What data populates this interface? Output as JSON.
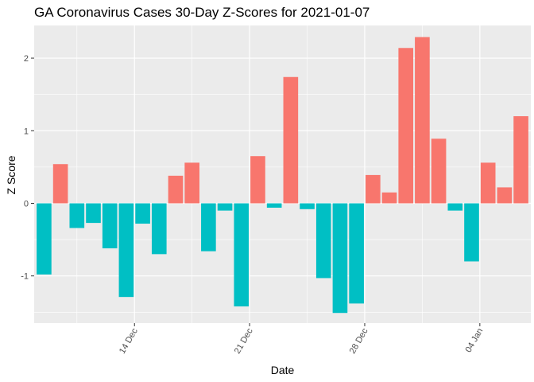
{
  "chart_data": {
    "type": "bar",
    "title": "GA Coronavirus Cases 30-Day Z-Scores for 2021-01-07",
    "xlabel": "Date",
    "ylabel": "Z Score",
    "ylim": [
      -1.65,
      2.45
    ],
    "y_ticks": [
      -1,
      0,
      1,
      2
    ],
    "y_tick_labels": [
      "-1",
      "0",
      "1",
      "2"
    ],
    "x_ticks": [
      {
        "label": "14 Dec",
        "index": 5.5
      },
      {
        "label": "21 Dec",
        "index": 12.5
      },
      {
        "label": "28 Dec",
        "index": 19.5
      },
      {
        "label": "04 Jan",
        "index": 26.5
      }
    ],
    "fill_positive": "#F8766D",
    "fill_negative": "#00BFC4",
    "panel_background": "#EBEBEB",
    "grid_color": "#FFFFFF",
    "grid": true,
    "legend": "none",
    "categories": [
      "2020-12-09",
      "2020-12-10",
      "2020-12-11",
      "2020-12-12",
      "2020-12-13",
      "2020-12-14",
      "2020-12-15",
      "2020-12-16",
      "2020-12-17",
      "2020-12-18",
      "2020-12-19",
      "2020-12-20",
      "2020-12-21",
      "2020-12-22",
      "2020-12-23",
      "2020-12-24",
      "2020-12-25",
      "2020-12-26",
      "2020-12-27",
      "2020-12-28",
      "2020-12-29",
      "2020-12-30",
      "2020-12-31",
      "2021-01-01",
      "2021-01-02",
      "2021-01-03",
      "2021-01-04",
      "2021-01-05",
      "2021-01-06",
      "2021-01-07"
    ],
    "values": [
      -0.98,
      0.54,
      -0.34,
      -0.27,
      -0.62,
      -1.29,
      -0.28,
      -0.7,
      0.38,
      0.56,
      -0.66,
      -0.1,
      -1.42,
      0.65,
      -0.06,
      1.74,
      -0.08,
      -1.03,
      -1.51,
      -1.38,
      0.39,
      0.15,
      2.14,
      2.29,
      0.89,
      -0.1,
      -0.8,
      0.56,
      0.22,
      1.2
    ]
  }
}
